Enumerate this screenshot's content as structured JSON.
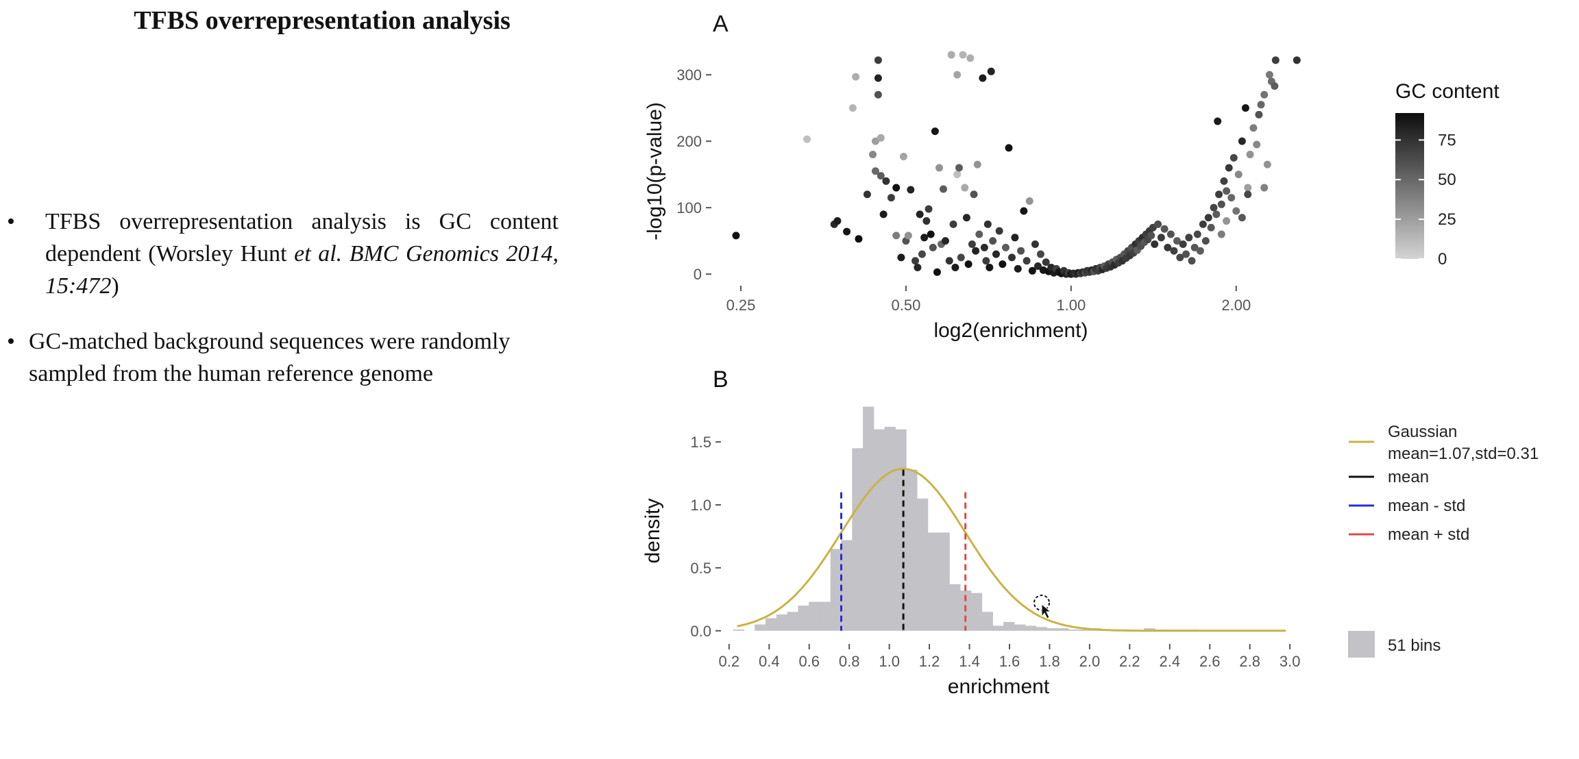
{
  "slide": {
    "title": "TFBS overrepresentation analysis",
    "bullet1": {
      "pre": "TFBS overrepresentation analysis is GC content dependent (Worsley Hunt ",
      "italic": "et al. BMC Genomics 2014, 15:472",
      "post": ")"
    },
    "bullet2": "GC-matched background sequences were randomly sampled from the human reference genome"
  },
  "chart_data": [
    {
      "panel": "A",
      "type": "scatter",
      "xlabel": "log2(enrichment)",
      "ylabel": "-log10(p-value)",
      "x_scale": "log2",
      "xlim": [
        0.23,
        2.6
      ],
      "ylim": [
        -5,
        328
      ],
      "x_ticks": [
        0.25,
        0.5,
        1.0,
        2.0
      ],
      "x_tick_labels": [
        "0.25",
        "0.50",
        "1.00",
        "2.00"
      ],
      "y_ticks": [
        0,
        100,
        200,
        300
      ],
      "color_legend": {
        "title": "GC content",
        "ticks": [
          0,
          25,
          50,
          75
        ],
        "range": [
          0,
          92
        ],
        "low_color": "#d4d4d4",
        "high_color": "#0d0d0d"
      },
      "grid": false,
      "points": [
        {
          "x": 0.245,
          "y": 58,
          "gc": 90
        },
        {
          "x": 0.33,
          "y": 203,
          "gc": 10
        },
        {
          "x": 0.37,
          "y": 75,
          "gc": 80
        },
        {
          "x": 0.375,
          "y": 80,
          "gc": 85
        },
        {
          "x": 0.39,
          "y": 64,
          "gc": 88
        },
        {
          "x": 0.4,
          "y": 250,
          "gc": 15
        },
        {
          "x": 0.405,
          "y": 297,
          "gc": 18
        },
        {
          "x": 0.41,
          "y": 53,
          "gc": 92
        },
        {
          "x": 0.425,
          "y": 120,
          "gc": 75
        },
        {
          "x": 0.435,
          "y": 180,
          "gc": 35
        },
        {
          "x": 0.44,
          "y": 155,
          "gc": 50
        },
        {
          "x": 0.44,
          "y": 200,
          "gc": 25
        },
        {
          "x": 0.445,
          "y": 322,
          "gc": 70
        },
        {
          "x": 0.445,
          "y": 295,
          "gc": 82
        },
        {
          "x": 0.445,
          "y": 270,
          "gc": 60
        },
        {
          "x": 0.45,
          "y": 148,
          "gc": 55
        },
        {
          "x": 0.45,
          "y": 205,
          "gc": 20
        },
        {
          "x": 0.455,
          "y": 90,
          "gc": 85
        },
        {
          "x": 0.46,
          "y": 140,
          "gc": 75
        },
        {
          "x": 0.47,
          "y": 115,
          "gc": 70
        },
        {
          "x": 0.48,
          "y": 58,
          "gc": 40
        },
        {
          "x": 0.48,
          "y": 130,
          "gc": 90
        },
        {
          "x": 0.49,
          "y": 25,
          "gc": 85
        },
        {
          "x": 0.495,
          "y": 177,
          "gc": 22
        },
        {
          "x": 0.5,
          "y": 50,
          "gc": 60
        },
        {
          "x": 0.505,
          "y": 58,
          "gc": 30
        },
        {
          "x": 0.51,
          "y": 127,
          "gc": 82
        },
        {
          "x": 0.52,
          "y": 20,
          "gc": 70
        },
        {
          "x": 0.525,
          "y": 10,
          "gc": 80
        },
        {
          "x": 0.53,
          "y": 90,
          "gc": 82
        },
        {
          "x": 0.535,
          "y": 30,
          "gc": 65
        },
        {
          "x": 0.54,
          "y": 55,
          "gc": 85
        },
        {
          "x": 0.545,
          "y": 80,
          "gc": 75
        },
        {
          "x": 0.55,
          "y": 98,
          "gc": 70
        },
        {
          "x": 0.555,
          "y": 60,
          "gc": 90
        },
        {
          "x": 0.56,
          "y": 40,
          "gc": 60
        },
        {
          "x": 0.565,
          "y": 215,
          "gc": 88
        },
        {
          "x": 0.57,
          "y": 3,
          "gc": 90
        },
        {
          "x": 0.575,
          "y": 160,
          "gc": 30
        },
        {
          "x": 0.58,
          "y": 45,
          "gc": 50
        },
        {
          "x": 0.585,
          "y": 128,
          "gc": 55
        },
        {
          "x": 0.59,
          "y": 50,
          "gc": 80
        },
        {
          "x": 0.6,
          "y": 20,
          "gc": 75
        },
        {
          "x": 0.605,
          "y": 330,
          "gc": 18
        },
        {
          "x": 0.61,
          "y": 75,
          "gc": 70
        },
        {
          "x": 0.615,
          "y": 10,
          "gc": 85
        },
        {
          "x": 0.62,
          "y": 300,
          "gc": 22
        },
        {
          "x": 0.62,
          "y": 150,
          "gc": 10
        },
        {
          "x": 0.625,
          "y": 160,
          "gc": 55
        },
        {
          "x": 0.63,
          "y": 25,
          "gc": 65
        },
        {
          "x": 0.635,
          "y": 330,
          "gc": 15
        },
        {
          "x": 0.64,
          "y": 130,
          "gc": 20
        },
        {
          "x": 0.645,
          "y": 85,
          "gc": 80
        },
        {
          "x": 0.65,
          "y": 15,
          "gc": 90
        },
        {
          "x": 0.655,
          "y": 325,
          "gc": 18
        },
        {
          "x": 0.66,
          "y": 45,
          "gc": 70
        },
        {
          "x": 0.665,
          "y": 120,
          "gc": 60
        },
        {
          "x": 0.67,
          "y": 35,
          "gc": 82
        },
        {
          "x": 0.675,
          "y": 165,
          "gc": 30
        },
        {
          "x": 0.68,
          "y": 60,
          "gc": 55
        },
        {
          "x": 0.69,
          "y": 295,
          "gc": 85
        },
        {
          "x": 0.695,
          "y": 40,
          "gc": 78
        },
        {
          "x": 0.7,
          "y": 20,
          "gc": 70
        },
        {
          "x": 0.705,
          "y": 75,
          "gc": 75
        },
        {
          "x": 0.71,
          "y": 10,
          "gc": 88
        },
        {
          "x": 0.715,
          "y": 305,
          "gc": 82
        },
        {
          "x": 0.72,
          "y": 50,
          "gc": 60
        },
        {
          "x": 0.73,
          "y": 30,
          "gc": 80
        },
        {
          "x": 0.74,
          "y": 65,
          "gc": 72
        },
        {
          "x": 0.75,
          "y": 15,
          "gc": 90
        },
        {
          "x": 0.76,
          "y": 40,
          "gc": 55
        },
        {
          "x": 0.77,
          "y": 190,
          "gc": 90
        },
        {
          "x": 0.78,
          "y": 25,
          "gc": 75
        },
        {
          "x": 0.79,
          "y": 55,
          "gc": 82
        },
        {
          "x": 0.8,
          "y": 8,
          "gc": 85
        },
        {
          "x": 0.81,
          "y": 35,
          "gc": 60
        },
        {
          "x": 0.82,
          "y": 95,
          "gc": 88
        },
        {
          "x": 0.83,
          "y": 20,
          "gc": 70
        },
        {
          "x": 0.84,
          "y": 110,
          "gc": 30
        },
        {
          "x": 0.85,
          "y": 5,
          "gc": 90
        },
        {
          "x": 0.86,
          "y": 45,
          "gc": 75
        },
        {
          "x": 0.87,
          "y": 12,
          "gc": 80
        },
        {
          "x": 0.88,
          "y": 30,
          "gc": 65
        },
        {
          "x": 0.89,
          "y": 6,
          "gc": 88
        },
        {
          "x": 0.9,
          "y": 18,
          "gc": 72
        },
        {
          "x": 0.91,
          "y": 4,
          "gc": 90
        },
        {
          "x": 0.92,
          "y": 10,
          "gc": 80
        },
        {
          "x": 0.93,
          "y": 2,
          "gc": 85
        },
        {
          "x": 0.94,
          "y": 8,
          "gc": 70
        },
        {
          "x": 0.95,
          "y": 3,
          "gc": 88
        },
        {
          "x": 0.96,
          "y": 1,
          "gc": 90
        },
        {
          "x": 0.97,
          "y": 5,
          "gc": 75
        },
        {
          "x": 0.98,
          "y": 0,
          "gc": 82
        },
        {
          "x": 0.99,
          "y": 2,
          "gc": 70
        },
        {
          "x": 1.0,
          "y": 0,
          "gc": 88
        },
        {
          "x": 1.01,
          "y": 1,
          "gc": 80
        },
        {
          "x": 1.02,
          "y": 0,
          "gc": 75
        },
        {
          "x": 1.03,
          "y": 2,
          "gc": 85
        },
        {
          "x": 1.04,
          "y": 1,
          "gc": 70
        },
        {
          "x": 1.05,
          "y": 3,
          "gc": 80
        },
        {
          "x": 1.06,
          "y": 2,
          "gc": 65
        },
        {
          "x": 1.07,
          "y": 5,
          "gc": 75
        },
        {
          "x": 1.08,
          "y": 3,
          "gc": 70
        },
        {
          "x": 1.09,
          "y": 6,
          "gc": 80
        },
        {
          "x": 1.1,
          "y": 4,
          "gc": 60
        },
        {
          "x": 1.11,
          "y": 8,
          "gc": 75
        },
        {
          "x": 1.12,
          "y": 5,
          "gc": 70
        },
        {
          "x": 1.13,
          "y": 10,
          "gc": 65
        },
        {
          "x": 1.14,
          "y": 7,
          "gc": 80
        },
        {
          "x": 1.15,
          "y": 12,
          "gc": 55
        },
        {
          "x": 1.16,
          "y": 9,
          "gc": 72
        },
        {
          "x": 1.17,
          "y": 15,
          "gc": 68
        },
        {
          "x": 1.18,
          "y": 11,
          "gc": 75
        },
        {
          "x": 1.19,
          "y": 18,
          "gc": 60
        },
        {
          "x": 1.2,
          "y": 14,
          "gc": 78
        },
        {
          "x": 1.21,
          "y": 22,
          "gc": 55
        },
        {
          "x": 1.22,
          "y": 17,
          "gc": 70
        },
        {
          "x": 1.23,
          "y": 25,
          "gc": 62
        },
        {
          "x": 1.24,
          "y": 20,
          "gc": 75
        },
        {
          "x": 1.25,
          "y": 30,
          "gc": 58
        },
        {
          "x": 1.26,
          "y": 24,
          "gc": 70
        },
        {
          "x": 1.27,
          "y": 35,
          "gc": 65
        },
        {
          "x": 1.28,
          "y": 28,
          "gc": 72
        },
        {
          "x": 1.29,
          "y": 40,
          "gc": 60
        },
        {
          "x": 1.3,
          "y": 32,
          "gc": 68
        },
        {
          "x": 1.31,
          "y": 45,
          "gc": 75
        },
        {
          "x": 1.32,
          "y": 36,
          "gc": 55
        },
        {
          "x": 1.33,
          "y": 50,
          "gc": 70
        },
        {
          "x": 1.34,
          "y": 42,
          "gc": 62
        },
        {
          "x": 1.35,
          "y": 55,
          "gc": 78
        },
        {
          "x": 1.36,
          "y": 48,
          "gc": 58
        },
        {
          "x": 1.37,
          "y": 60,
          "gc": 70
        },
        {
          "x": 1.38,
          "y": 52,
          "gc": 65
        },
        {
          "x": 1.39,
          "y": 65,
          "gc": 72
        },
        {
          "x": 1.4,
          "y": 58,
          "gc": 60
        },
        {
          "x": 1.41,
          "y": 70,
          "gc": 68
        },
        {
          "x": 1.42,
          "y": 45,
          "gc": 75
        },
        {
          "x": 1.44,
          "y": 75,
          "gc": 62
        },
        {
          "x": 1.46,
          "y": 55,
          "gc": 70
        },
        {
          "x": 1.48,
          "y": 68,
          "gc": 58
        },
        {
          "x": 1.5,
          "y": 40,
          "gc": 72
        },
        {
          "x": 1.52,
          "y": 60,
          "gc": 60
        },
        {
          "x": 1.54,
          "y": 35,
          "gc": 68
        },
        {
          "x": 1.56,
          "y": 50,
          "gc": 55
        },
        {
          "x": 1.58,
          "y": 25,
          "gc": 65
        },
        {
          "x": 1.6,
          "y": 45,
          "gc": 70
        },
        {
          "x": 1.62,
          "y": 30,
          "gc": 60
        },
        {
          "x": 1.64,
          "y": 55,
          "gc": 68
        },
        {
          "x": 1.66,
          "y": 20,
          "gc": 62
        },
        {
          "x": 1.68,
          "y": 40,
          "gc": 58
        },
        {
          "x": 1.7,
          "y": 60,
          "gc": 65
        },
        {
          "x": 1.72,
          "y": 35,
          "gc": 55
        },
        {
          "x": 1.74,
          "y": 75,
          "gc": 70
        },
        {
          "x": 1.76,
          "y": 50,
          "gc": 62
        },
        {
          "x": 1.78,
          "y": 85,
          "gc": 72
        },
        {
          "x": 1.8,
          "y": 70,
          "gc": 58
        },
        {
          "x": 1.82,
          "y": 100,
          "gc": 65
        },
        {
          "x": 1.84,
          "y": 90,
          "gc": 55
        },
        {
          "x": 1.86,
          "y": 120,
          "gc": 70
        },
        {
          "x": 1.88,
          "y": 105,
          "gc": 60
        },
        {
          "x": 1.9,
          "y": 140,
          "gc": 68
        },
        {
          "x": 1.92,
          "y": 125,
          "gc": 55
        },
        {
          "x": 1.94,
          "y": 160,
          "gc": 72
        },
        {
          "x": 1.96,
          "y": 115,
          "gc": 50
        },
        {
          "x": 1.98,
          "y": 175,
          "gc": 65
        },
        {
          "x": 2.0,
          "y": 95,
          "gc": 45
        },
        {
          "x": 1.85,
          "y": 230,
          "gc": 85
        },
        {
          "x": 1.88,
          "y": 60,
          "gc": 40
        },
        {
          "x": 1.92,
          "y": 80,
          "gc": 30
        },
        {
          "x": 2.02,
          "y": 150,
          "gc": 35
        },
        {
          "x": 2.05,
          "y": 200,
          "gc": 80
        },
        {
          "x": 2.08,
          "y": 250,
          "gc": 88
        },
        {
          "x": 2.1,
          "y": 130,
          "gc": 25
        },
        {
          "x": 2.12,
          "y": 180,
          "gc": 30
        },
        {
          "x": 2.15,
          "y": 220,
          "gc": 40
        },
        {
          "x": 2.18,
          "y": 195,
          "gc": 35
        },
        {
          "x": 2.2,
          "y": 240,
          "gc": 60
        },
        {
          "x": 2.22,
          "y": 255,
          "gc": 50
        },
        {
          "x": 2.25,
          "y": 270,
          "gc": 45
        },
        {
          "x": 2.3,
          "y": 300,
          "gc": 42
        },
        {
          "x": 2.32,
          "y": 290,
          "gc": 48
        },
        {
          "x": 2.35,
          "y": 283,
          "gc": 55
        },
        {
          "x": 2.36,
          "y": 322,
          "gc": 70
        },
        {
          "x": 2.58,
          "y": 322,
          "gc": 75
        },
        {
          "x": 2.25,
          "y": 130,
          "gc": 38
        },
        {
          "x": 2.28,
          "y": 165,
          "gc": 30
        },
        {
          "x": 2.1,
          "y": 120,
          "gc": 65
        },
        {
          "x": 2.05,
          "y": 85,
          "gc": 58
        }
      ]
    },
    {
      "panel": "B",
      "type": "bar",
      "xlabel": "enrichment",
      "ylabel": "density",
      "xlim": [
        0.18,
        3.02
      ],
      "ylim": [
        -0.05,
        1.8
      ],
      "x_ticks": [
        0.2,
        0.4,
        0.6,
        0.8,
        1.0,
        1.2,
        1.4,
        1.6,
        1.8,
        2.0,
        2.2,
        2.4,
        2.6,
        2.8,
        3.0
      ],
      "x_tick_labels": [
        "0.2",
        "0.4",
        "0.6",
        "0.8",
        "1.0",
        "1.2",
        "1.4",
        "1.6",
        "1.8",
        "2.0",
        "2.2",
        "2.4",
        "2.6",
        "2.8",
        "3.0"
      ],
      "y_ticks": [
        0.0,
        0.5,
        1.0,
        1.5
      ],
      "y_tick_labels": [
        "0.0",
        "0.5",
        "1.0",
        "1.5"
      ],
      "grid": false,
      "histogram": {
        "start": 0.22,
        "bin_width": 0.054,
        "values": [
          0.01,
          0.0,
          0.05,
          0.1,
          0.13,
          0.15,
          0.2,
          0.23,
          0.23,
          0.65,
          0.72,
          1.45,
          1.78,
          1.6,
          1.62,
          1.6,
          1.28,
          1.05,
          0.78,
          0.78,
          0.37,
          0.32,
          0.3,
          0.15,
          0.04,
          0.07,
          0.05,
          0.04,
          0.03,
          0.02,
          0.02,
          0.01,
          0.01,
          0.02,
          0.01,
          0.0,
          0.01,
          0.0,
          0.02,
          0.01,
          0.01,
          0.01,
          0.01,
          0.0,
          0.0,
          0.0,
          0.0,
          0.0,
          0.0,
          0.0,
          0.0
        ]
      },
      "gaussian": {
        "mean": 1.07,
        "std": 0.31,
        "x_range": [
          0.24,
          2.98
        ]
      },
      "vlines": {
        "mean": 1.07,
        "mean_minus_std": 0.76,
        "mean_plus_std": 1.38
      },
      "legend": {
        "gaussian_line1": "Gaussian",
        "gaussian_line2": "mean=1.07,std=0.31",
        "mean": "mean",
        "mean_minus": "mean - std",
        "mean_plus": "mean + std",
        "bins": "51 bins"
      },
      "colors": {
        "bars": "#c3c2c6",
        "gaussian": "#c8b444",
        "mean": "#111111",
        "mean_minus": "#2a2ad6",
        "mean_plus": "#e04848"
      }
    }
  ],
  "panel_labels": {
    "a": "A",
    "b": "B"
  }
}
